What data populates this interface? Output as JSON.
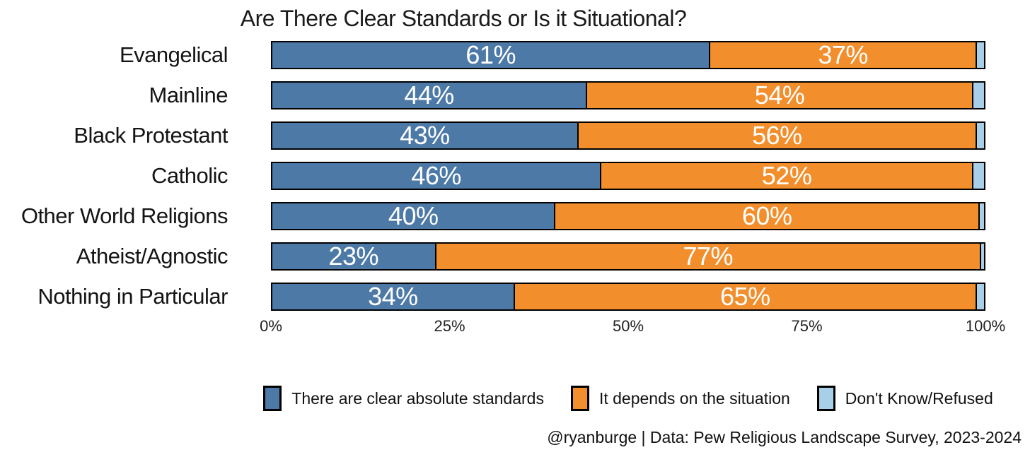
{
  "chart_data": {
    "type": "bar",
    "variant": "horizontal-stacked-100",
    "title": "Are There Clear Standards or Is it Situational?",
    "categories": [
      "Evangelical",
      "Mainline",
      "Black Protestant",
      "Catholic",
      "Other World Religions",
      "Atheist/Agnostic",
      "Nothing in Particular"
    ],
    "series": [
      {
        "name": "There are clear absolute standards",
        "color": "#4d79a7",
        "show_labels": true,
        "values": [
          61,
          44,
          43,
          46,
          40,
          23,
          34
        ]
      },
      {
        "name": "It depends on the situation",
        "color": "#f28e2b",
        "show_labels": true,
        "values": [
          37,
          54,
          56,
          52,
          60,
          77,
          65
        ]
      },
      {
        "name": "Don't Know/Refused",
        "color": "#a8cfe8",
        "show_labels": false,
        "values": [
          1,
          1.5,
          1,
          1.5,
          0.6,
          0.4,
          1
        ]
      }
    ],
    "x_ticks": [
      "0%",
      "25%",
      "50%",
      "75%",
      "100%"
    ],
    "xlim": [
      0,
      100
    ],
    "grid": false,
    "legend_position": "bottom",
    "bar_label_suffix": "%"
  },
  "caption": "@ryanburge | Data: Pew Religious Landscape Survey, 2023-2024"
}
